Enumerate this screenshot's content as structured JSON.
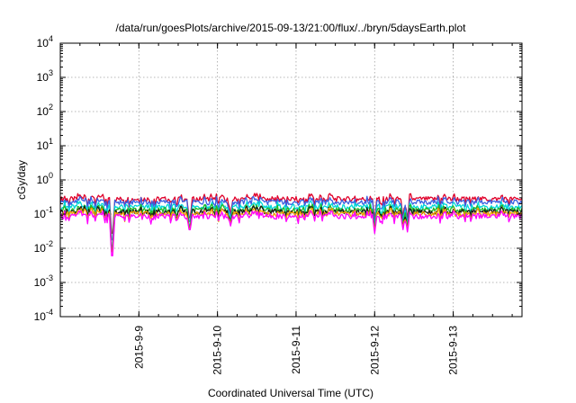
{
  "chart_data": {
    "type": "line",
    "title": "/data/run/goesPlots/archive/2015-09-13/21:00/flux/../bryn/5daysEarth.plot",
    "xlabel": "Coordinated Universal Time (UTC)",
    "ylabel": "cGy/day",
    "yscale": "log",
    "ylim": [
      0.0001,
      10000
    ],
    "xlim": [
      "2015-09-08T00:00",
      "2015-09-13T21:00"
    ],
    "grid": true,
    "x_ticks": [
      "2015-9-9",
      "2015-9-10",
      "2015-9-11",
      "2015-9-12",
      "2015-9-13"
    ],
    "y_ticks": [
      {
        "value": 0.0001,
        "base": "10",
        "exp": "-4"
      },
      {
        "value": 0.001,
        "base": "10",
        "exp": "-3"
      },
      {
        "value": 0.01,
        "base": "10",
        "exp": "-2"
      },
      {
        "value": 0.1,
        "base": "10",
        "exp": "-1"
      },
      {
        "value": 1,
        "base": "10",
        "exp": "0"
      },
      {
        "value": 10,
        "base": "10",
        "exp": "1"
      },
      {
        "value": 100,
        "base": "10",
        "exp": "2"
      },
      {
        "value": 1000,
        "base": "10",
        "exp": "3"
      },
      {
        "value": 10000,
        "base": "10",
        "exp": "4"
      }
    ],
    "series": [
      {
        "color": "#e0002a",
        "base": 0.27,
        "dips": 0.6
      },
      {
        "color": "#3a5ee0",
        "base": 0.22,
        "dips": 0.7
      },
      {
        "color": "#00d8d8",
        "base": 0.16,
        "dips": 0.8
      },
      {
        "color": "#22b822",
        "base": 0.13,
        "dips": 0.85
      },
      {
        "color": "#1a1a1a",
        "base": 0.115,
        "dips": 0.9
      },
      {
        "color": "#f0a000",
        "base": 0.1,
        "dips": 0.9
      },
      {
        "color": "#ff00ff",
        "base": 0.085,
        "dips": 1.0
      }
    ],
    "dip_events": [
      {
        "t": "2015-09-08T15:45",
        "min": 0.006
      },
      {
        "t": "2015-09-09T15:30",
        "min": 0.035
      },
      {
        "t": "2015-09-10T04:00",
        "min": 0.045
      },
      {
        "t": "2015-09-12T00:00",
        "min": 0.027
      },
      {
        "t": "2015-09-12T08:40",
        "min": 0.035
      },
      {
        "t": "2015-09-12T10:00",
        "min": 0.03
      }
    ]
  }
}
